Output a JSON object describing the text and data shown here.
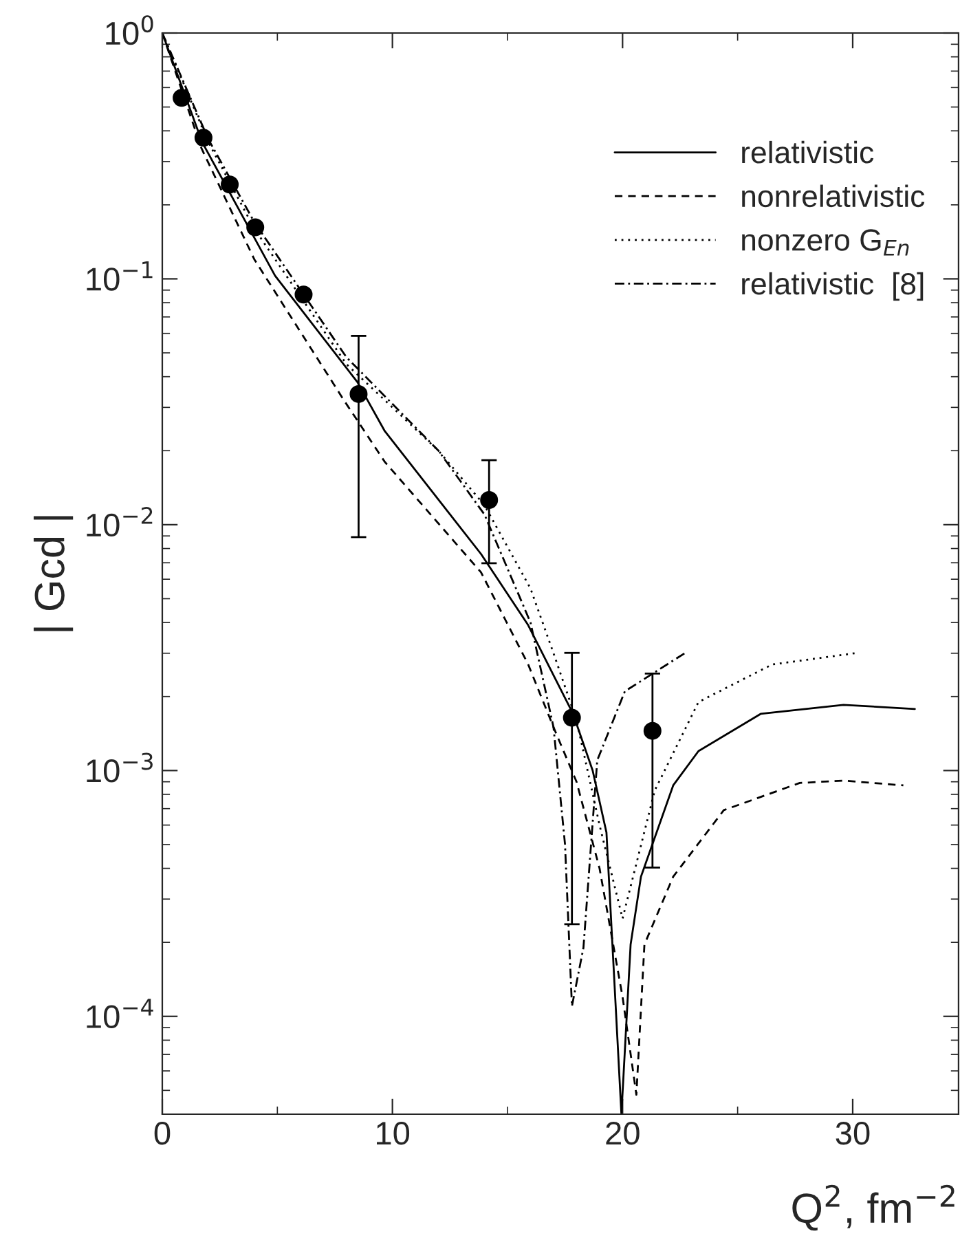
{
  "chart_data": {
    "type": "line",
    "xlabel": "Q$^{2}$, fm$^{−2}$",
    "ylabel": "| Gcd |",
    "log": "y",
    "xlim": [
      0,
      34.6
    ],
    "xticks": [
      0,
      10,
      20,
      30
    ],
    "ylim": [
      4e-05,
      1
    ],
    "yticks": [
      {
        "value": 0.0001,
        "label": "10$^{−4}$"
      },
      {
        "value": 0.001,
        "label": "10$^{−3}$"
      },
      {
        "value": 0.01,
        "label": "10$^{−2}$"
      },
      {
        "value": 0.1,
        "label": "10$^{−1}$"
      },
      {
        "value": 1,
        "label": "10$^{0}$"
      }
    ],
    "grid": false,
    "legend": "top right",
    "series": [
      {
        "name": "relativistic",
        "color": "#000000",
        "line_style": "solid",
        "x": [
          0,
          1.73,
          4.9,
          8.48,
          9.67,
          13.85,
          15.9,
          17.85,
          18.7,
          19.3,
          19.95,
          20.35,
          20.8,
          22.2,
          23.3,
          26.0,
          29.6,
          32.7
        ],
        "values": [
          1,
          0.36,
          0.103,
          0.038,
          0.024,
          0.0076,
          0.0039,
          0.0017,
          0.001,
          0.00056,
          4e-05,
          0.000196,
          0.00037,
          0.00087,
          0.0012,
          0.0017,
          0.00185,
          0.00178
        ]
      },
      {
        "name": "nonrelativistic",
        "color": "#000000",
        "line_style": "dashed",
        "x": [
          0,
          1.7,
          4,
          7.9,
          9.67,
          13.85,
          15.9,
          17,
          18,
          19,
          20,
          20.6,
          20.95,
          22.2,
          24.4,
          27.7,
          29.6,
          32.2
        ],
        "values": [
          1,
          0.34,
          0.12,
          0.032,
          0.018,
          0.0064,
          0.0027,
          0.0015,
          0.0009,
          0.0004,
          0.00012,
          4.8e-05,
          0.000196,
          0.00037,
          0.00069,
          0.00089,
          0.00091,
          0.00087
        ]
      },
      {
        "name": "nonzero G$_{En}$",
        "color": "#000000",
        "line_style": "dotted",
        "x": [
          0,
          2,
          4,
          8,
          12,
          14,
          16,
          17,
          18,
          19,
          20,
          21.4,
          23.3,
          26.5,
          30.1
        ],
        "values": [
          1,
          0.36,
          0.16,
          0.045,
          0.02,
          0.012,
          0.0055,
          0.003,
          0.0016,
          0.0006,
          0.00025,
          0.00083,
          0.0019,
          0.0027,
          0.003
        ]
      },
      {
        "name": "relativistic  [8]",
        "color": "#000000",
        "line_style": "dashdot",
        "x": [
          0,
          2,
          4,
          8,
          12,
          14,
          16,
          17,
          17.5,
          17.8,
          18.3,
          18.9,
          20.1,
          22.7
        ],
        "values": [
          1,
          0.37,
          0.17,
          0.048,
          0.02,
          0.011,
          0.004,
          0.0015,
          0.0005,
          0.00011,
          0.00019,
          0.0011,
          0.0021,
          0.003
        ]
      },
      {
        "type": "scatter",
        "color": "#000000",
        "marker": "circle",
        "x": [
          0.84,
          1.79,
          2.93,
          4.04,
          6.14,
          8.53,
          14.2,
          17.8,
          21.3
        ],
        "values": [
          0.545,
          0.375,
          0.242,
          0.162,
          0.0863,
          0.034,
          0.0126,
          0.00164,
          0.00145
        ],
        "errors": [
          null,
          null,
          null,
          null,
          null,
          [
            0.0089,
            0.0586
          ],
          [
            0.00697,
            0.0183
          ],
          [
            0.000237,
            0.00301
          ],
          [
            0.000403,
            0.00248
          ]
        ]
      }
    ]
  }
}
